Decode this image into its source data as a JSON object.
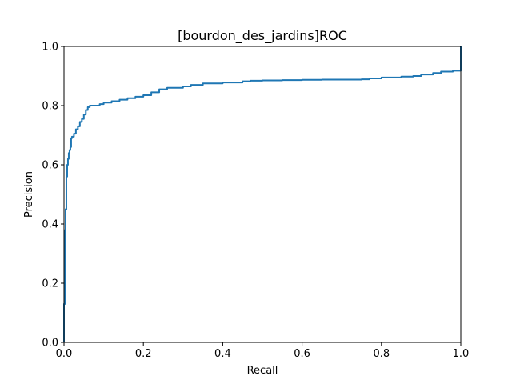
{
  "chart_data": {
    "type": "line",
    "title": "[bourdon_des_jardins]ROC",
    "xlabel": "Recall",
    "ylabel": "Precision",
    "xlim": [
      0,
      1
    ],
    "ylim": [
      0,
      1
    ],
    "xticks": [
      "0.0",
      "0.2",
      "0.4",
      "0.6",
      "0.8",
      "1.0"
    ],
    "yticks": [
      "0.0",
      "0.2",
      "0.4",
      "0.6",
      "0.8",
      "1.0"
    ],
    "grid": false,
    "series": [
      {
        "color": "#1f77b4",
        "x": [
          0.0,
          0.0,
          0.003,
          0.004,
          0.006,
          0.008,
          0.01,
          0.012,
          0.014,
          0.016,
          0.018,
          0.02,
          0.025,
          0.03,
          0.035,
          0.04,
          0.045,
          0.05,
          0.055,
          0.06,
          0.065,
          0.07,
          0.08,
          0.09,
          0.1,
          0.12,
          0.14,
          0.16,
          0.18,
          0.2,
          0.22,
          0.24,
          0.26,
          0.3,
          0.32,
          0.35,
          0.4,
          0.45,
          0.47,
          0.5,
          0.55,
          0.6,
          0.65,
          0.7,
          0.75,
          0.77,
          0.8,
          0.85,
          0.88,
          0.9,
          0.93,
          0.95,
          0.98,
          1.0,
          1.0
        ],
        "y": [
          0.0,
          0.13,
          0.38,
          0.45,
          0.56,
          0.6,
          0.62,
          0.64,
          0.65,
          0.66,
          0.69,
          0.695,
          0.705,
          0.72,
          0.73,
          0.745,
          0.755,
          0.77,
          0.785,
          0.795,
          0.8,
          0.8,
          0.8,
          0.805,
          0.81,
          0.815,
          0.82,
          0.825,
          0.83,
          0.835,
          0.845,
          0.855,
          0.86,
          0.865,
          0.87,
          0.875,
          0.878,
          0.882,
          0.884,
          0.885,
          0.886,
          0.887,
          0.888,
          0.888,
          0.889,
          0.892,
          0.895,
          0.898,
          0.9,
          0.905,
          0.91,
          0.915,
          0.918,
          0.92,
          1.0
        ]
      }
    ]
  }
}
